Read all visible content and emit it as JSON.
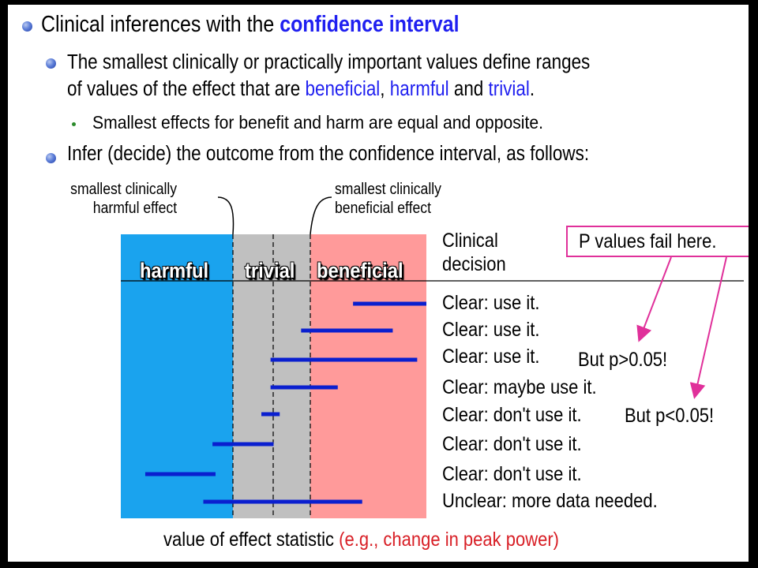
{
  "bullets": {
    "b1_prefix": "Clinical inferences with the ",
    "b1_highlight": "confidence interval",
    "b2_line1": "The smallest clinically or practically important values define ranges",
    "b2_line2_prefix": "of values of the effect that are ",
    "b2_beneficial": "beneficial",
    "b2_comma": ", ",
    "b2_harmful": "harmful",
    "b2_and": " and ",
    "b2_trivial": "trivial",
    "b2_period": ".",
    "b3": "Smallest effects for benefit and harm are equal and opposite.",
    "b4": "Infer (decide) the outcome from the confidence interval, as follows:"
  },
  "threshold_labels": {
    "harm_line1": "smallest clinically",
    "harm_line2": "harmful effect",
    "benefit_line1": "smallest clinically",
    "benefit_line2": "beneficial effect"
  },
  "zones": {
    "harmful": "harmful",
    "trivial": "trivial",
    "beneficial": "beneficial",
    "colors": {
      "harmful": "#1aa3ee",
      "trivial": "#c0c0c0",
      "beneficial": "#ff9a9a",
      "interval": "#0a1fcf"
    }
  },
  "header": {
    "line1": "Clinical",
    "line2": "decision"
  },
  "pvalue_box": "P values fail here.",
  "intervals": [
    {
      "low": 0.76,
      "high": 1.0,
      "decision": "Clear: use it.",
      "note": ""
    },
    {
      "low": 0.59,
      "high": 0.89,
      "decision": "Clear: use it.",
      "note": ""
    },
    {
      "low": 0.49,
      "high": 0.97,
      "decision": "Clear: use it.",
      "note": "But p>0.05!"
    },
    {
      "low": 0.49,
      "high": 0.71,
      "decision": "Clear: maybe use it.",
      "note": ""
    },
    {
      "low": 0.46,
      "high": 0.52,
      "decision": "Clear: don't use it.",
      "note": "But p<0.05!"
    },
    {
      "low": 0.3,
      "high": 0.5,
      "decision": "Clear: don't use it.",
      "note": ""
    },
    {
      "low": 0.08,
      "high": 0.31,
      "decision": "Clear: don't use it.",
      "note": ""
    },
    {
      "low": 0.27,
      "high": 0.79,
      "decision": "Unclear: more data needed.",
      "note": ""
    }
  ],
  "axis": {
    "label": "value of effect statistic",
    "example": "(e.g., change in peak power)"
  }
}
